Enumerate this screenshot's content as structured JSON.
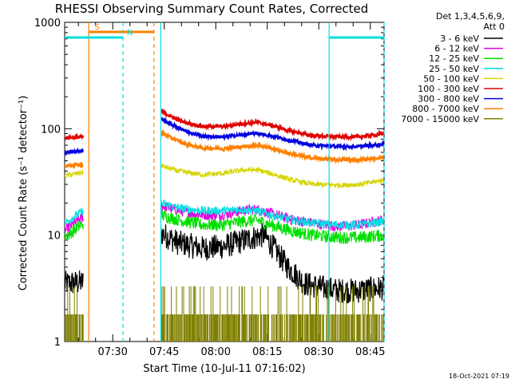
{
  "chart_data": {
    "type": "line",
    "title": "RHESSI Observing Summary Count Rates, Corrected",
    "xlabel": "Start Time (10-Jul-11 07:16:02)",
    "ylabel": "Corrected Count Rate (s⁻¹ detector⁻¹)",
    "ylog": true,
    "ylim": [
      1,
      1000
    ],
    "xlim_min": [
      0,
      93
    ],
    "yticks": [
      {
        "v": 1,
        "label": "1"
      },
      {
        "v": 10,
        "label": "10"
      },
      {
        "v": 100,
        "label": "100"
      },
      {
        "v": 1000,
        "label": "1000"
      }
    ],
    "xticks": [
      {
        "v": 14,
        "label": "07:30"
      },
      {
        "v": 29,
        "label": "07:45"
      },
      {
        "v": 44,
        "label": "08:00"
      },
      {
        "v": 59,
        "label": "08:15"
      },
      {
        "v": 74,
        "label": "08:30"
      },
      {
        "v": 89,
        "label": "08:45"
      }
    ],
    "legend_header": [
      "Det 1,3,4,5,6,9,",
      "Att 0"
    ],
    "legend_position": "right",
    "gaps": [
      [
        5.5,
        28
      ]
    ],
    "series": [
      {
        "name": "3 - 6 keV",
        "color": "#000000",
        "noise": 0.12,
        "knots": [
          [
            0,
            3.5
          ],
          [
            5.5,
            3.6
          ],
          [
            28,
            10.5
          ],
          [
            33,
            8.5
          ],
          [
            40,
            7.5
          ],
          [
            46,
            7.8
          ],
          [
            50,
            8.5
          ],
          [
            55,
            9.5
          ],
          [
            58,
            10
          ],
          [
            61,
            7.5
          ],
          [
            65,
            5
          ],
          [
            70,
            3.5
          ],
          [
            75,
            3.2
          ],
          [
            80,
            3
          ],
          [
            85,
            3
          ],
          [
            93,
            3.2
          ]
        ]
      },
      {
        "name": "6 - 12 keV",
        "color": "#e000e0",
        "noise": 0.05,
        "knots": [
          [
            0,
            11
          ],
          [
            5.5,
            15
          ],
          [
            28,
            19
          ],
          [
            33,
            17
          ],
          [
            40,
            15.5
          ],
          [
            46,
            15.5
          ],
          [
            52,
            17
          ],
          [
            56,
            17.5
          ],
          [
            60,
            16
          ],
          [
            66,
            14
          ],
          [
            72,
            13
          ],
          [
            80,
            12
          ],
          [
            86,
            12.5
          ],
          [
            93,
            14
          ]
        ]
      },
      {
        "name": "12 - 25 keV",
        "color": "#00e000",
        "noise": 0.06,
        "knots": [
          [
            0,
            9.5
          ],
          [
            5.5,
            13
          ],
          [
            28,
            15.5
          ],
          [
            33,
            14
          ],
          [
            40,
            12.5
          ],
          [
            46,
            12.5
          ],
          [
            52,
            13.5
          ],
          [
            56,
            13.8
          ],
          [
            60,
            12.5
          ],
          [
            66,
            11
          ],
          [
            72,
            10
          ],
          [
            80,
            9.5
          ],
          [
            86,
            9.5
          ],
          [
            93,
            10
          ]
        ]
      },
      {
        "name": "25 - 50 keV",
        "color": "#00e0e0",
        "noise": 0.04,
        "knots": [
          [
            0,
            13
          ],
          [
            5.5,
            17
          ],
          [
            28,
            20
          ],
          [
            33,
            18
          ],
          [
            40,
            17
          ],
          [
            46,
            17
          ],
          [
            52,
            17.5
          ],
          [
            56,
            17
          ],
          [
            60,
            15.5
          ],
          [
            66,
            14
          ],
          [
            72,
            13
          ],
          [
            80,
            12.5
          ],
          [
            86,
            12.5
          ],
          [
            93,
            13.5
          ]
        ]
      },
      {
        "name": "50 - 100 keV",
        "color": "#d4d400",
        "noise": 0.025,
        "knots": [
          [
            0,
            36
          ],
          [
            5.5,
            39
          ],
          [
            28,
            45
          ],
          [
            33,
            40
          ],
          [
            40,
            37
          ],
          [
            46,
            38
          ],
          [
            52,
            41
          ],
          [
            56,
            41
          ],
          [
            60,
            38
          ],
          [
            66,
            33
          ],
          [
            72,
            30
          ],
          [
            80,
            29.5
          ],
          [
            86,
            30
          ],
          [
            93,
            33
          ]
        ]
      },
      {
        "name": "100 - 300 keV",
        "color": "#e00000",
        "noise": 0.015,
        "knots": [
          [
            0,
            82
          ],
          [
            5.5,
            84
          ],
          [
            28,
            148
          ],
          [
            31,
            130
          ],
          [
            35,
            115
          ],
          [
            40,
            105
          ],
          [
            46,
            105
          ],
          [
            52,
            112
          ],
          [
            56,
            115
          ],
          [
            60,
            108
          ],
          [
            66,
            95
          ],
          [
            72,
            86
          ],
          [
            80,
            84
          ],
          [
            86,
            84
          ],
          [
            93,
            90
          ]
        ]
      },
      {
        "name": "300 - 800 keV",
        "color": "#0000e0",
        "noise": 0.015,
        "knots": [
          [
            0,
            60
          ],
          [
            5.5,
            62
          ],
          [
            28,
            125
          ],
          [
            31,
            110
          ],
          [
            35,
            95
          ],
          [
            40,
            85
          ],
          [
            46,
            84
          ],
          [
            52,
            88
          ],
          [
            56,
            91
          ],
          [
            60,
            86
          ],
          [
            66,
            77
          ],
          [
            72,
            70
          ],
          [
            80,
            68
          ],
          [
            86,
            68
          ],
          [
            93,
            72
          ]
        ]
      },
      {
        "name": "800 - 7000 keV",
        "color": "#ff8000",
        "noise": 0.015,
        "knots": [
          [
            0,
            45
          ],
          [
            5.5,
            46
          ],
          [
            28,
            92
          ],
          [
            31,
            82
          ],
          [
            35,
            72
          ],
          [
            40,
            66
          ],
          [
            46,
            65
          ],
          [
            52,
            68
          ],
          [
            56,
            70
          ],
          [
            60,
            66
          ],
          [
            66,
            58
          ],
          [
            72,
            53
          ],
          [
            80,
            51
          ],
          [
            86,
            51
          ],
          [
            93,
            54
          ]
        ]
      },
      {
        "name": "7000 - 15000 keV",
        "color": "#808000",
        "noise": 0.0,
        "bars": true,
        "knots": [
          [
            0,
            1.8
          ],
          [
            93,
            1.8
          ]
        ]
      }
    ],
    "flags": [
      {
        "label": "S",
        "color": "#ff8000",
        "y": 40,
        "from": 7,
        "to": 26,
        "lines": [
          7,
          26
        ],
        "dash": [
          false,
          true
        ]
      },
      {
        "label": "N",
        "color": "#00e0e0",
        "y": 47,
        "from": 0,
        "to": 17,
        "lines": [
          17
        ],
        "dash": [
          true
        ]
      },
      {
        "label": "",
        "color": "#00e0e0",
        "y": 47,
        "from": 77,
        "to": 93,
        "lines": [
          77,
          93
        ],
        "dash": [
          false,
          true
        ]
      }
    ],
    "extra_lines": [
      {
        "x": 28,
        "color": "#00e0e0",
        "dash": false
      }
    ]
  },
  "footer": {
    "timestamp": "18-Oct-2021 07:19"
  }
}
